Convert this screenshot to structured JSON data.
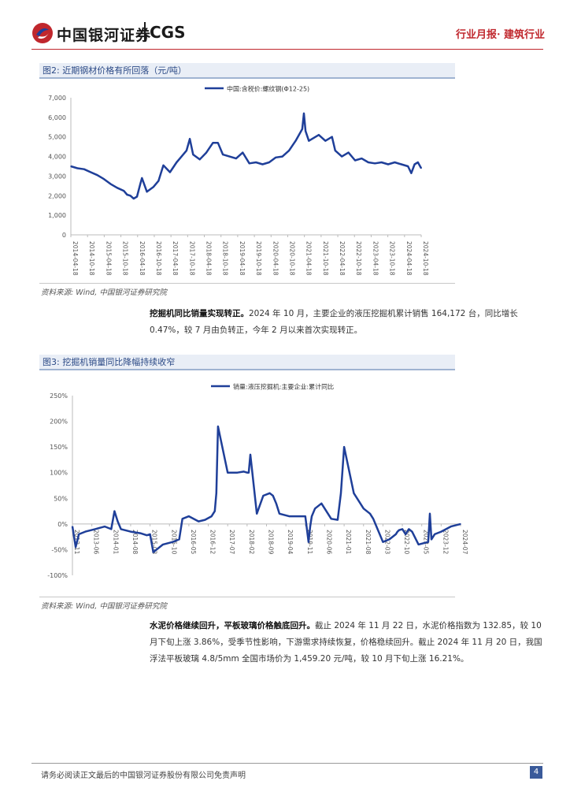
{
  "header": {
    "brand_cn": "中国银河证券",
    "brand_en": "CGS",
    "right": "行业月报· 建筑行业"
  },
  "figure2": {
    "caption": "图2: 近期钢材价格有所回落（元/吨）",
    "source": "资料来源: Wind, 中国银河证券研究院"
  },
  "figure3": {
    "caption": "图3: 挖掘机销量同比降幅持续收窄",
    "source": "资料来源: Wind, 中国银河证券研究院"
  },
  "para1": {
    "bold": "挖掘机同比销量实现转正。",
    "text": "2024 年 10 月，主要企业的液压挖掘机累计销售 164,172 台，同比增长 0.47%，较 7 月由负转正，今年 2 月以来首次实现转正。"
  },
  "para2": {
    "bold": "水泥价格继续回升，平板玻璃价格触底回升。",
    "text": "截止 2024 年 11 月 22 日，水泥价格指数为 132.85，较 10 月下旬上涨 3.86%，受季节性影响，下游需求持续恢复，价格稳续回升。截止 2024 年 11 月 20 日，我国浮法平板玻璃 4.8/5mm 全国市场价为 1,459.20 元/吨，较 10 月下旬上涨 16.21%。"
  },
  "footer": {
    "text": "请务必阅读正文最后的中国银河证券股份有限公司免责声明",
    "page": "4"
  },
  "colors": {
    "series": "#1f3f99",
    "accent": "#c0272d"
  },
  "chart_data": [
    {
      "type": "line",
      "title": "",
      "legend": "中国:含税价:螺纹钢(Φ12-25)",
      "legend_position": "top",
      "ylim": [
        0,
        7000
      ],
      "yticks": [
        0,
        1000,
        2000,
        3000,
        4000,
        5000,
        6000,
        7000
      ],
      "ytick_labels": [
        "0",
        "1,000",
        "2,000",
        "3,000",
        "4,000",
        "5,000",
        "6,000",
        "7,000"
      ],
      "xtick_labels": [
        "2014-04-18",
        "2014-10-18",
        "2015-04-18",
        "2015-10-18",
        "2016-04-18",
        "2016-10-18",
        "2017-04-18",
        "2017-10-18",
        "2018-04-18",
        "2018-10-18",
        "2019-04-18",
        "2019-10-18",
        "2020-04-18",
        "2020-10-18",
        "2021-04-18",
        "2021-10-18",
        "2022-04-18",
        "2022-10-18",
        "2023-04-18",
        "2023-10-18",
        "2024-04-18",
        "2024-10-18"
      ],
      "x": [
        2014.3,
        2014.5,
        2014.7,
        2014.9,
        2015.1,
        2015.3,
        2015.5,
        2015.7,
        2015.9,
        2016.0,
        2016.1,
        2016.2,
        2016.3,
        2016.4,
        2016.45,
        2016.6,
        2016.8,
        2016.95,
        2017.1,
        2017.3,
        2017.5,
        2017.6,
        2017.8,
        2017.9,
        2018.0,
        2018.2,
        2018.4,
        2018.6,
        2018.75,
        2018.9,
        2019.1,
        2019.3,
        2019.5,
        2019.7,
        2019.9,
        2020.1,
        2020.3,
        2020.5,
        2020.7,
        2020.9,
        2021.1,
        2021.3,
        2021.35,
        2021.4,
        2021.5,
        2021.7,
        2021.8,
        2022.0,
        2022.2,
        2022.3,
        2022.5,
        2022.7,
        2022.9,
        2023.1,
        2023.3,
        2023.5,
        2023.7,
        2023.9,
        2024.1,
        2024.3,
        2024.5,
        2024.6,
        2024.7,
        2024.8,
        2024.9
      ],
      "y": [
        3500,
        3400,
        3350,
        3200,
        3050,
        2850,
        2600,
        2400,
        2250,
        2050,
        2000,
        1850,
        1950,
        2600,
        2900,
        2200,
        2450,
        2750,
        3550,
        3200,
        3700,
        3900,
        4300,
        4900,
        4100,
        3850,
        4200,
        4700,
        4700,
        4100,
        4000,
        3900,
        4200,
        3650,
        3700,
        3600,
        3700,
        3950,
        4000,
        4300,
        4800,
        5400,
        6200,
        5300,
        4800,
        5000,
        5100,
        4800,
        5000,
        4300,
        4000,
        4200,
        3800,
        3900,
        3700,
        3650,
        3700,
        3600,
        3700,
        3600,
        3500,
        3150,
        3600,
        3700,
        3400
      ]
    },
    {
      "type": "line",
      "title": "",
      "legend": "销量:液压挖掘机:主要企业:累计同比",
      "legend_position": "top",
      "ylim": [
        -100,
        250
      ],
      "yticks": [
        -100,
        -50,
        0,
        50,
        100,
        150,
        200,
        250
      ],
      "ytick_labels": [
        "-100%",
        "-50%",
        "0%",
        "50%",
        "100%",
        "150%",
        "200%",
        "250%"
      ],
      "xtick_labels": [
        "2012-11",
        "2013-06",
        "2014-01",
        "2014-08",
        "2015-03",
        "2015-10",
        "2016-05",
        "2016-12",
        "2017-07",
        "2018-02",
        "2018-09",
        "2019-04",
        "2019-11",
        "2020-06",
        "2021-01",
        "2021-08",
        "2022-03",
        "2022-10",
        "2023-05",
        "2023-12",
        "2024-07"
      ],
      "x": [
        2012.8,
        2012.9,
        2013.0,
        2013.2,
        2013.5,
        2013.8,
        2014.0,
        2014.1,
        2014.2,
        2014.3,
        2014.6,
        2014.9,
        2015.1,
        2015.2,
        2015.3,
        2015.6,
        2015.9,
        2016.1,
        2016.2,
        2016.4,
        2016.7,
        2016.9,
        2017.1,
        2017.2,
        2017.25,
        2017.3,
        2017.6,
        2017.9,
        2018.1,
        2018.2,
        2018.25,
        2018.3,
        2018.5,
        2018.7,
        2018.9,
        2019.0,
        2019.1,
        2019.2,
        2019.5,
        2019.8,
        2020.0,
        2020.1,
        2020.15,
        2020.2,
        2020.3,
        2020.5,
        2020.8,
        2021.0,
        2021.1,
        2021.2,
        2021.5,
        2021.8,
        2022.0,
        2022.1,
        2022.2,
        2022.4,
        2022.6,
        2022.8,
        2022.85,
        2022.9,
        2023.0,
        2023.1,
        2023.15,
        2023.2,
        2023.3,
        2023.5,
        2023.8,
        2023.85,
        2023.9,
        2024.0,
        2024.2,
        2024.5,
        2024.8
      ],
      "y": [
        -5,
        -45,
        -20,
        -15,
        -10,
        -5,
        -10,
        25,
        5,
        -10,
        -15,
        -18,
        -22,
        -20,
        -55,
        -40,
        -35,
        -30,
        10,
        15,
        5,
        8,
        15,
        25,
        60,
        190,
        100,
        100,
        102,
        100,
        100,
        135,
        20,
        55,
        60,
        55,
        40,
        20,
        15,
        15,
        15,
        -35,
        -5,
        15,
        30,
        40,
        10,
        8,
        60,
        150,
        60,
        30,
        20,
        10,
        -5,
        -35,
        -30,
        -20,
        -15,
        -12,
        -10,
        -20,
        -15,
        -10,
        -15,
        -40,
        -35,
        20,
        -30,
        -20,
        -15,
        -5,
        0
      ]
    }
  ]
}
